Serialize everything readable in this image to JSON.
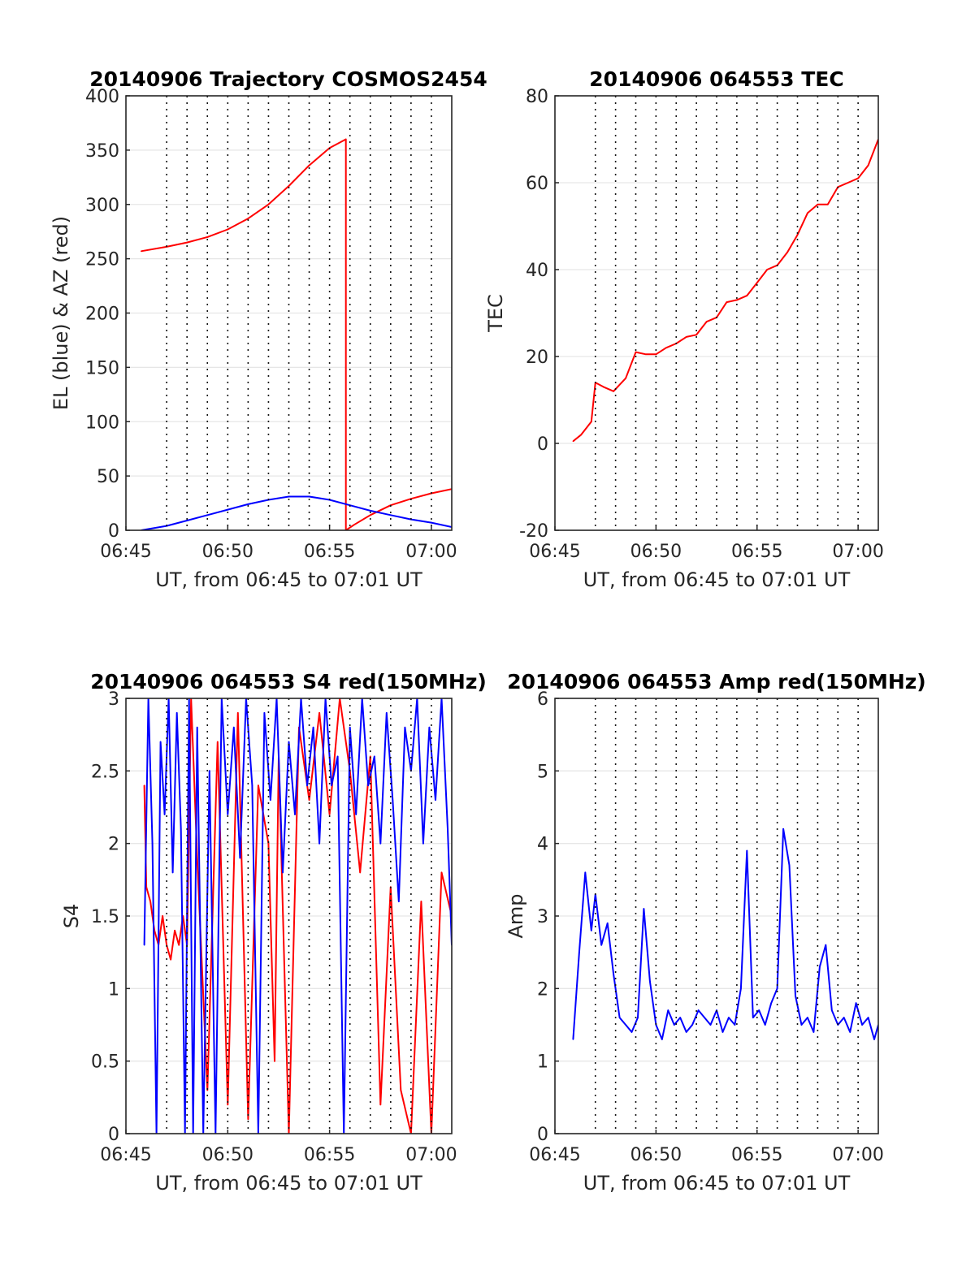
{
  "chart_data": [
    {
      "type": "line",
      "title": "20140906 Trajectory COSMOS2454",
      "xlabel": "UT, from 06:45 to 07:01 UT",
      "ylabel": "EL (blue) & AZ (red)",
      "xlim": [
        45,
        61
      ],
      "ylim": [
        0,
        400
      ],
      "xticks": [
        "06:45",
        "06:50",
        "06:55",
        "07:00"
      ],
      "yticks": [
        "0",
        "50",
        "100",
        "150",
        "200",
        "250",
        "300",
        "350",
        "400"
      ],
      "grid": "on",
      "colors": {
        "az": "#ff0000",
        "el": "#0000ff"
      },
      "series": [
        {
          "color": "#ff0000",
          "x": [
            45.75,
            47,
            48,
            49,
            50,
            51,
            52,
            53,
            54,
            55,
            55.8,
            55.8,
            56.2,
            57,
            58,
            59,
            60,
            61
          ],
          "y": [
            257,
            261,
            265,
            270,
            277,
            287,
            300,
            317,
            336,
            352,
            360,
            0,
            5,
            14,
            23,
            29,
            34,
            38
          ]
        },
        {
          "color": "#0000ff",
          "x": [
            45.75,
            47,
            48,
            49,
            50,
            51,
            52,
            53,
            54,
            55,
            56,
            57,
            58,
            59,
            60,
            61
          ],
          "y": [
            0,
            4,
            9,
            14,
            19,
            24,
            28,
            31,
            31,
            28,
            23,
            18,
            14,
            10,
            7,
            3
          ]
        }
      ]
    },
    {
      "type": "line",
      "title": "20140906 064553 TEC",
      "xlabel": "UT, from 06:45 to 07:01 UT",
      "ylabel": "TEC",
      "xlim": [
        45,
        61
      ],
      "ylim": [
        -20,
        80
      ],
      "xticks": [
        "06:45",
        "06:50",
        "06:55",
        "07:00"
      ],
      "yticks": [
        "-20",
        "0",
        "20",
        "40",
        "60",
        "80"
      ],
      "grid": "on",
      "colors": {
        "tec": "#ff0000"
      },
      "series": [
        {
          "color": "#ff0000",
          "x": [
            45.9,
            46.3,
            46.8,
            47.0,
            47.4,
            47.9,
            48.5,
            49.0,
            49.5,
            50.0,
            50.5,
            51.0,
            51.5,
            52.0,
            52.5,
            53.0,
            53.5,
            54.0,
            54.5,
            55.0,
            55.5,
            56.0,
            56.5,
            57.0,
            57.5,
            58.0,
            58.5,
            59.0,
            59.5,
            60.0,
            60.5,
            61.0
          ],
          "y": [
            0.5,
            2,
            5,
            14,
            13,
            12,
            15,
            21,
            20.5,
            20.5,
            22,
            23,
            24.5,
            25,
            28,
            29,
            32.5,
            33,
            34,
            37,
            40,
            41,
            44,
            48,
            53,
            55,
            55,
            59,
            60,
            61,
            64,
            70
          ]
        }
      ]
    },
    {
      "type": "line",
      "title": "20140906 064553 S4 red(150MHz)",
      "xlabel": "UT, from 06:45 to 07:01 UT",
      "ylabel": "S4",
      "xlim": [
        45,
        61
      ],
      "ylim": [
        0,
        3
      ],
      "xticks": [
        "06:45",
        "06:50",
        "06:55",
        "07:00"
      ],
      "yticks": [
        "0",
        "0.5",
        "1",
        "1.5",
        "2",
        "2.5",
        "3"
      ],
      "grid": "on",
      "colors": {
        "red": "#ff0000",
        "blue": "#0000ff"
      },
      "series": [
        {
          "color": "#ff0000",
          "x": [
            45.9,
            46.0,
            46.2,
            46.4,
            46.6,
            46.8,
            47.0,
            47.2,
            47.4,
            47.6,
            47.8,
            48.0,
            48.2,
            48.5,
            49.0,
            49.5,
            50.0,
            50.5,
            51.0,
            51.5,
            52.0,
            52.3,
            52.5,
            53.0,
            53.5,
            54.0,
            54.5,
            55.0,
            55.5,
            56.0,
            56.5,
            57.0,
            57.5,
            58.0,
            58.5,
            59.0,
            59.5,
            60.0,
            60.5,
            61.0
          ],
          "y": [
            2.4,
            1.7,
            1.6,
            1.4,
            1.3,
            1.5,
            1.3,
            1.2,
            1.4,
            1.3,
            1.5,
            1.3,
            3,
            1.9,
            0.3,
            2.7,
            0.2,
            2.9,
            0.1,
            2.4,
            2.0,
            0.5,
            2.6,
            0.0,
            2.8,
            2.3,
            2.9,
            2.2,
            3.0,
            2.5,
            1.8,
            2.6,
            0.2,
            1.7,
            0.3,
            0.0,
            1.6,
            0.0,
            1.8,
            1.5
          ]
        },
        {
          "color": "#0000ff",
          "x": [
            45.9,
            46.1,
            46.3,
            46.5,
            46.7,
            46.9,
            47.1,
            47.3,
            47.5,
            47.7,
            47.9,
            48.1,
            48.3,
            48.5,
            48.8,
            49.1,
            49.4,
            49.7,
            50.0,
            50.3,
            50.6,
            50.9,
            51.2,
            51.5,
            51.8,
            52.1,
            52.4,
            52.7,
            53.0,
            53.3,
            53.6,
            53.9,
            54.2,
            54.5,
            54.8,
            55.1,
            55.4,
            55.7,
            56.0,
            56.3,
            56.6,
            56.9,
            57.2,
            57.5,
            57.8,
            58.1,
            58.4,
            58.7,
            59.0,
            59.3,
            59.6,
            59.9,
            60.2,
            60.5,
            60.8,
            61.0
          ],
          "y": [
            1.3,
            3,
            2.0,
            0.0,
            2.7,
            2.2,
            3,
            1.8,
            2.9,
            2.1,
            0.0,
            3,
            0.0,
            2.8,
            0.0,
            2.5,
            0.0,
            3,
            2.2,
            2.8,
            1.9,
            3,
            2.4,
            0.0,
            2.9,
            2.3,
            3,
            1.8,
            2.7,
            2.2,
            3,
            2.4,
            2.8,
            2.0,
            3,
            2.4,
            2.6,
            0.0,
            2.8,
            2.2,
            3,
            2.4,
            2.6,
            2.0,
            2.9,
            2.3,
            1.6,
            2.8,
            2.5,
            3,
            2.0,
            2.8,
            2.3,
            3,
            2.1,
            1.3
          ]
        }
      ]
    },
    {
      "type": "line",
      "title": "20140906 064553 Amp red(150MHz)",
      "xlabel": "UT, from 06:45 to 07:01 UT",
      "ylabel": "Amp",
      "xlim": [
        45,
        61
      ],
      "ylim": [
        0,
        6
      ],
      "xticks": [
        "06:45",
        "06:50",
        "06:55",
        "07:00"
      ],
      "yticks": [
        "0",
        "1",
        "2",
        "3",
        "4",
        "5",
        "6"
      ],
      "grid": "on",
      "colors": {
        "amp": "#0000ff"
      },
      "series": [
        {
          "color": "#0000ff",
          "x": [
            45.9,
            46.2,
            46.5,
            46.8,
            47.0,
            47.3,
            47.6,
            47.9,
            48.2,
            48.5,
            48.8,
            49.1,
            49.4,
            49.7,
            50.0,
            50.3,
            50.6,
            50.9,
            51.2,
            51.5,
            51.8,
            52.1,
            52.4,
            52.7,
            53.0,
            53.3,
            53.6,
            53.9,
            54.2,
            54.5,
            54.8,
            55.1,
            55.4,
            55.7,
            56.0,
            56.3,
            56.6,
            56.9,
            57.2,
            57.5,
            57.8,
            58.1,
            58.4,
            58.7,
            59.0,
            59.3,
            59.6,
            59.9,
            60.2,
            60.5,
            60.8,
            61.0
          ],
          "y": [
            1.3,
            2.5,
            3.6,
            2.8,
            3.3,
            2.6,
            2.9,
            2.2,
            1.6,
            1.5,
            1.4,
            1.6,
            3.1,
            2.1,
            1.5,
            1.3,
            1.7,
            1.5,
            1.6,
            1.4,
            1.5,
            1.7,
            1.6,
            1.5,
            1.7,
            1.4,
            1.6,
            1.5,
            2.0,
            3.9,
            1.6,
            1.7,
            1.5,
            1.8,
            2.0,
            4.2,
            3.7,
            1.9,
            1.5,
            1.6,
            1.4,
            2.3,
            2.6,
            1.7,
            1.5,
            1.6,
            1.4,
            1.8,
            1.5,
            1.6,
            1.3,
            1.5
          ]
        }
      ]
    }
  ]
}
